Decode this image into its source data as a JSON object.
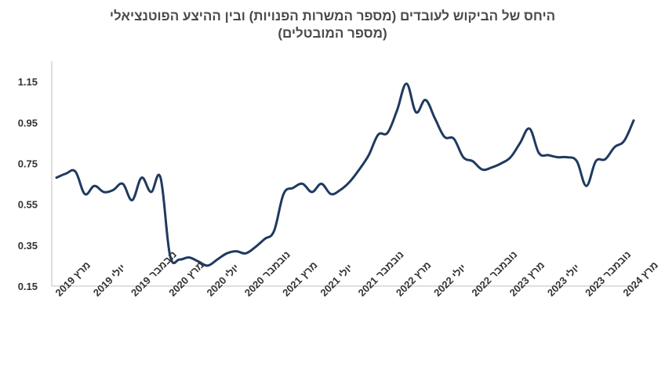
{
  "chart_data": {
    "type": "line",
    "title_lines": [
      "היחס של הביקוש לעובדים (מספר המשרות הפנויות) ובין ההיצע הפוטנציאלי",
      "(מספר המובטלים)"
    ],
    "xlabel": "",
    "ylabel": "",
    "ylim": [
      0.15,
      1.25
    ],
    "y_ticks": [
      "0.15",
      "0.35",
      "0.55",
      "0.75",
      "0.95",
      "1.15"
    ],
    "x_tick_labels": [
      "מרץ 2019",
      "יולי 2019",
      "נובמבר 2019",
      "מרץ 2020",
      "יולי 2020",
      "נובמבר 2020",
      "מרץ 2021",
      "יולי 2021",
      "נובמבר 2021",
      "מרץ 2022",
      "יולי 2022",
      "נובמבר 2022",
      "מרץ 2023",
      "יולי 2023",
      "נובמבר 2023",
      "מרץ 2024"
    ],
    "line_color": "#1f3a5f",
    "series": [
      {
        "values": [
          0.68,
          0.7,
          0.71,
          0.6,
          0.64,
          0.61,
          0.62,
          0.65,
          0.57,
          0.68,
          0.61,
          0.68,
          0.3,
          0.28,
          0.29,
          0.27,
          0.25,
          0.28,
          0.31,
          0.32,
          0.31,
          0.34,
          0.38,
          0.42,
          0.6,
          0.63,
          0.65,
          0.61,
          0.65,
          0.6,
          0.62,
          0.66,
          0.72,
          0.79,
          0.89,
          0.9,
          1.01,
          1.14,
          1.0,
          1.06,
          0.97,
          0.88,
          0.87,
          0.78,
          0.76,
          0.72,
          0.73,
          0.75,
          0.78,
          0.85,
          0.92,
          0.8,
          0.79,
          0.78,
          0.78,
          0.76,
          0.64,
          0.76,
          0.77,
          0.83,
          0.86,
          0.96
        ]
      }
    ]
  }
}
